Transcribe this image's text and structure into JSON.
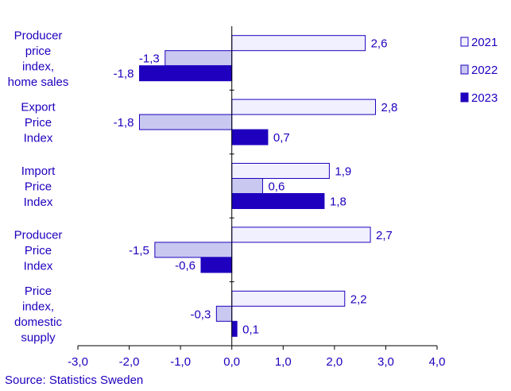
{
  "chart_data": {
    "type": "bar",
    "orientation": "horizontal",
    "categories": [
      [
        "Producer",
        "price",
        "index,",
        "home sales"
      ],
      [
        "Export",
        "Price",
        "Index"
      ],
      [
        "Import",
        "Price",
        "Index"
      ],
      [
        "Producer",
        "Price",
        "Index"
      ],
      [
        "Price",
        "index,",
        "domestic",
        "supply"
      ]
    ],
    "series": [
      {
        "name": "2021",
        "values": [
          2.6,
          2.8,
          1.9,
          2.7,
          2.2
        ],
        "value_labels": [
          "2,6",
          "2,8",
          "1,9",
          "2,7",
          "2,2"
        ]
      },
      {
        "name": "2022",
        "values": [
          -1.3,
          -1.8,
          0.6,
          -1.5,
          -0.3
        ],
        "value_labels": [
          "-1,3",
          "-1,8",
          "0,6",
          "-1,5",
          "-0,3"
        ]
      },
      {
        "name": "2023",
        "values": [
          -1.8,
          0.7,
          1.8,
          -0.6,
          0.1
        ],
        "value_labels": [
          "-1,8",
          "0,7",
          "1,8",
          "-0,6",
          "0,1"
        ]
      }
    ],
    "xlim": [
      -3.0,
      4.0
    ],
    "xticks": [
      -3,
      -2,
      -1,
      0,
      1,
      2,
      3,
      4
    ],
    "xtick_labels": [
      "-3,0",
      "-2,0",
      "-1,0",
      "0,0",
      "1,0",
      "2,0",
      "3,0",
      "4,0"
    ],
    "grid": false,
    "legend": "top-right",
    "colors": {
      "2021": "#f0f0ff",
      "2022": "#c8c8f0",
      "2023": "#1e00be",
      "outline": "#1e00be",
      "text": "#1e00be"
    }
  },
  "source": "Source: Statistics Sweden"
}
